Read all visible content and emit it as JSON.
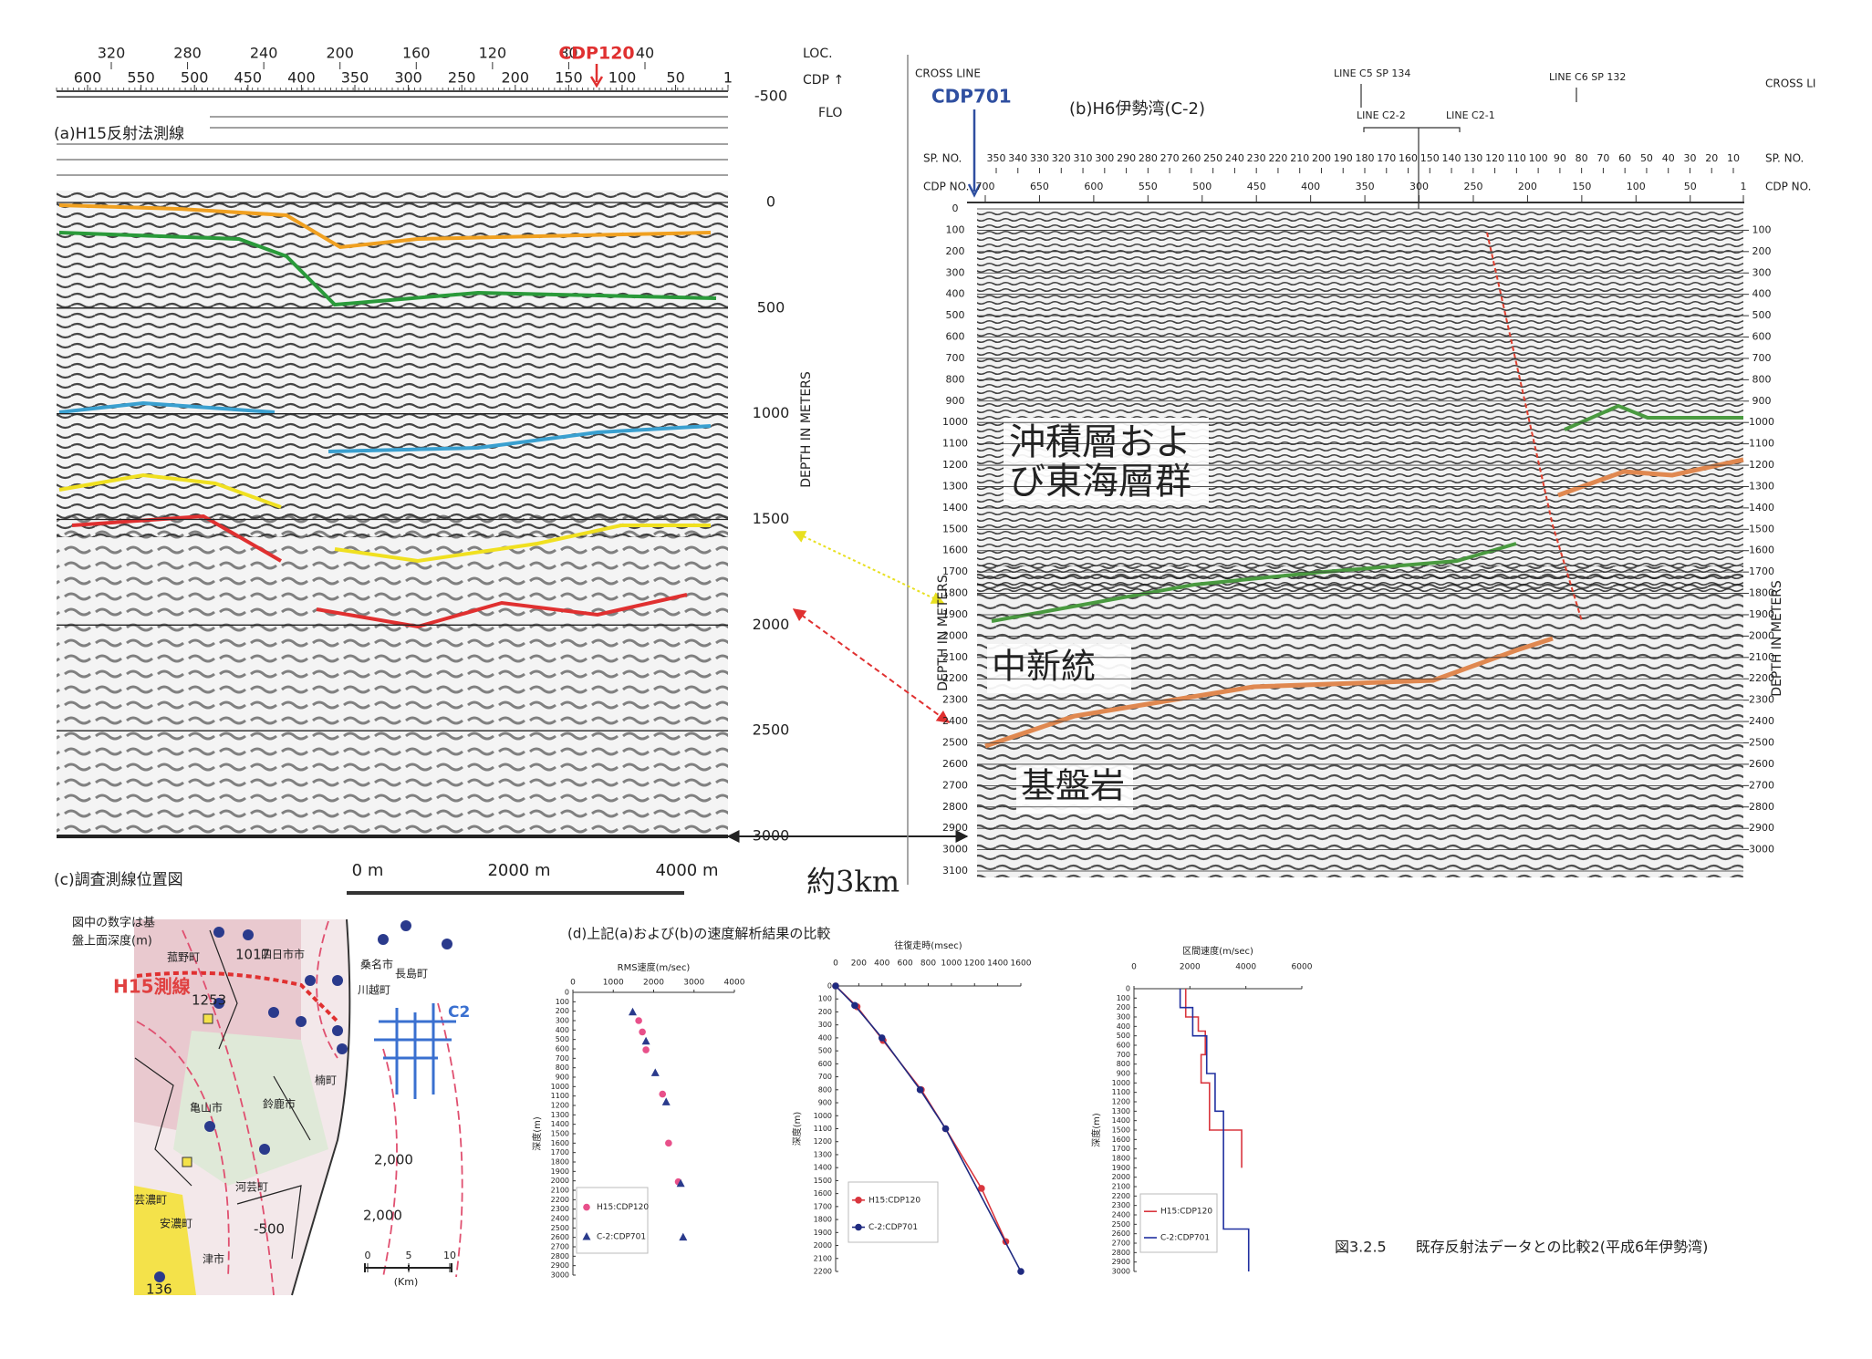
{
  "panel_a": {
    "title": "(a)H15反射法測線",
    "marker": "CDP120",
    "loc_label": "LOC.",
    "cdp_label": "CDP ↑",
    "flo_label": "FLO",
    "loc_ticks": [
      320,
      280,
      240,
      200,
      160,
      120,
      80,
      40
    ],
    "cdp_ticks": [
      600,
      550,
      500,
      450,
      400,
      350,
      300,
      250,
      200,
      150,
      100,
      50,
      1
    ],
    "depth_ticks": [
      -500,
      0,
      500,
      1000,
      1500,
      2000,
      2500,
      3000
    ],
    "depth_axis": "DEPTH IN METERS",
    "scale_labels": [
      "0 m",
      "2000 m",
      "4000 m"
    ]
  },
  "span_label": "約3km",
  "panel_b": {
    "title": "(b)H6伊勢湾(C-2)",
    "cross_line_left": "CROSS LINE",
    "cross_line_right": "CROSS LI",
    "marker": "CDP701",
    "line_labels": [
      "LINE C5 SP 134",
      "LINE C6 SP 132",
      "LINE C2-2",
      "LINE C2-1"
    ],
    "sp_label": "SP. NO.",
    "cdp_label": "CDP NO.",
    "sp_ticks": [
      350,
      340,
      330,
      320,
      310,
      300,
      290,
      280,
      270,
      260,
      250,
      240,
      230,
      220,
      210,
      200,
      190,
      180,
      170,
      160,
      150,
      140,
      130,
      120,
      110,
      100,
      90,
      80,
      70,
      60,
      50,
      40,
      30,
      20,
      10
    ],
    "cdp_ticks": [
      700,
      650,
      600,
      550,
      500,
      450,
      400,
      350,
      300,
      250,
      200,
      150,
      100,
      50,
      1
    ],
    "depth_ticks_left": [
      0,
      100,
      200,
      300,
      400,
      500,
      600,
      700,
      800,
      900,
      1000,
      1100,
      1200,
      1300,
      1400,
      1500,
      1600,
      1700,
      1800,
      1900,
      2000,
      2100,
      2200,
      2300,
      2400,
      2500,
      2600,
      2700,
      2800,
      2900,
      3000,
      3100
    ],
    "depth_ticks_right": [
      100,
      200,
      300,
      400,
      500,
      600,
      700,
      800,
      900,
      1000,
      1100,
      1200,
      1300,
      1400,
      1500,
      1600,
      1700,
      1800,
      1900,
      2000,
      2100,
      2200,
      2300,
      2400,
      2500,
      2600,
      2700,
      2800,
      2900,
      3000
    ],
    "depth_axis": "DEPTH IN METERS",
    "units": [
      "沖積層およ",
      "び東海層群",
      "中新統",
      "基盤岩"
    ]
  },
  "panel_c": {
    "title": "(c)調査測線位置図",
    "note": [
      "図中の数字は基",
      "盤上面深度(m)"
    ],
    "line_label": "H15測線",
    "labels": [
      "1017",
      "1253",
      "四日市市",
      "菰野町",
      "桑名市",
      "長島町",
      "川越町",
      "楠町",
      "亀山市",
      "鈴鹿市",
      "河芸町",
      "芸濃町",
      "安濃町",
      "津市",
      "C2",
      "2,000",
      "2,000",
      "-500",
      "136"
    ],
    "scale_ticks": [
      0,
      5,
      10
    ],
    "scale_unit": "(Km)"
  },
  "panel_d": {
    "title": "(d)上記(a)および(b)の速度解析結果の比較",
    "charts": [
      {
        "type": "scatter",
        "title": "RMS速度(m/sec)",
        "ylabel": "深度(m)",
        "xlim": [
          0,
          4000
        ],
        "xticks": [
          0,
          1000,
          2000,
          3000,
          4000
        ],
        "ylim": [
          0,
          3000
        ],
        "yticks": [
          0,
          100,
          200,
          300,
          400,
          500,
          600,
          700,
          800,
          900,
          1000,
          1100,
          1200,
          1300,
          1400,
          1500,
          1600,
          1700,
          1800,
          1900,
          2000,
          2100,
          2200,
          2300,
          2400,
          2500,
          2600,
          2700,
          2800,
          2900,
          3000
        ],
        "series": [
          {
            "name": "H15:CDP120",
            "color": "#e8508a",
            "marker": "circle",
            "x": [
              1630,
              1720,
              1810,
              2220,
              2370,
              2610
            ],
            "y": [
              300,
              420,
              610,
              1080,
              1600,
              2010
            ]
          },
          {
            "name": "C-2:CDP701",
            "color": "#2a3a8c",
            "marker": "triangle",
            "x": [
              1480,
              1810,
              2040,
              2310,
              2670,
              2730
            ],
            "y": [
              210,
              520,
              855,
              1165,
              2030,
              2600
            ]
          }
        ]
      },
      {
        "type": "line",
        "title": "往復走時(msec)",
        "ylabel": "深度(m)",
        "xlim": [
          0,
          1600
        ],
        "xticks": [
          0,
          200,
          400,
          600,
          800,
          1000,
          1200,
          1400,
          1600
        ],
        "ylim": [
          0,
          2200
        ],
        "yticks": [
          0,
          100,
          200,
          300,
          400,
          500,
          600,
          700,
          800,
          900,
          1000,
          1100,
          1200,
          1300,
          1400,
          1500,
          1600,
          1700,
          1800,
          1900,
          2000,
          2100,
          2200
        ],
        "series": [
          {
            "name": "H15:CDP120",
            "color": "#d9363e",
            "marker": "circle",
            "x": [
              0,
              185,
              410,
              740,
              950,
              1260,
              1470
            ],
            "y": [
              0,
              160,
              420,
              800,
              1100,
              1560,
              1970
            ]
          },
          {
            "name": "C-2:CDP701",
            "color": "#1f2a80",
            "marker": "circle",
            "x": [
              0,
              165,
              400,
              730,
              950,
              1600
            ],
            "y": [
              0,
              150,
              400,
              800,
              1100,
              2200
            ]
          }
        ]
      },
      {
        "type": "line",
        "title": "区間速度(m/sec)",
        "ylabel": "深度(m)",
        "xlim": [
          0,
          6000
        ],
        "xticks": [
          0,
          2000,
          4000,
          6000
        ],
        "ylim": [
          0,
          3000
        ],
        "yticks": [
          0,
          100,
          200,
          300,
          400,
          500,
          600,
          700,
          800,
          900,
          1000,
          1100,
          1200,
          1300,
          1400,
          1500,
          1600,
          1700,
          1800,
          1900,
          2000,
          2100,
          2200,
          2300,
          2400,
          2500,
          2600,
          2700,
          2800,
          2900,
          3000
        ],
        "series": [
          {
            "name": "H15:CDP120",
            "color": "#d9363e",
            "x": [
              1850,
              1850,
              2300,
              2300,
              2550,
              2550,
              2400,
              2400,
              2700,
              2700,
              3850,
              3850
            ],
            "y": [
              0,
              300,
              300,
              450,
              450,
              700,
              700,
              1000,
              1000,
              1500,
              1500,
              1900
            ]
          },
          {
            "name": "C-2:CDP701",
            "color": "#2030a0",
            "x": [
              1650,
              1650,
              2100,
              2100,
              2600,
              2600,
              2900,
              2900,
              3200,
              3200,
              4100,
              4100
            ],
            "y": [
              0,
              200,
              200,
              500,
              500,
              900,
              900,
              1300,
              1300,
              2550,
              2550,
              3000
            ]
          }
        ]
      }
    ]
  },
  "caption": "図3.2.5　　既存反射法データとの比較2(平成6年伊勢湾)"
}
